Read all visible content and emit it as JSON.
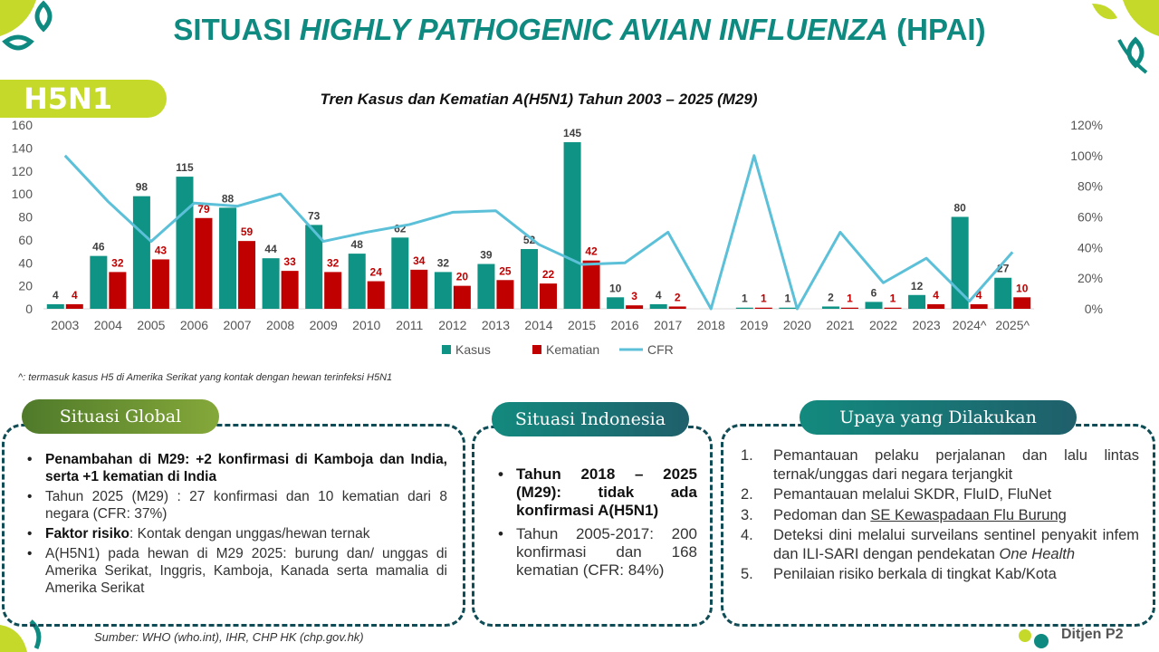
{
  "title_part1": "SITUASI ",
  "title_italic": "HIGHLY PATHOGENIC AVIAN INFLUENZA",
  "title_part2": " (HPAI)",
  "tag": "H5N1",
  "colors": {
    "kasus": "#0e9384",
    "kematian": "#c00000",
    "cfr": "#5bc0d8",
    "teal": "#0e8a80",
    "lime": "#c5d92a"
  },
  "chart_data": {
    "type": "bar",
    "title": "Tren Kasus dan Kematian A(H5N1) Tahun 2003 – 2025 (M29)",
    "categories": [
      "2003",
      "2004",
      "2005",
      "2006",
      "2007",
      "2008",
      "2009",
      "2010",
      "2011",
      "2012",
      "2013",
      "2014",
      "2015",
      "2016",
      "2017",
      "2018",
      "2019",
      "2020",
      "2021",
      "2022",
      "2023",
      "2024^",
      "2025^"
    ],
    "series": [
      {
        "name": "Kasus",
        "type": "bar",
        "axis": "left",
        "values": [
          4,
          46,
          98,
          115,
          88,
          44,
          73,
          48,
          62,
          32,
          39,
          52,
          145,
          10,
          4,
          0,
          1,
          1,
          2,
          6,
          12,
          80,
          27
        ],
        "labels": [
          "4",
          "46",
          "98",
          "115",
          "88",
          "44",
          "73",
          "48",
          "62",
          "32",
          "39",
          "52",
          "145",
          "10",
          "4",
          "",
          "1",
          "1",
          "2",
          "6",
          "12",
          "80",
          "27"
        ]
      },
      {
        "name": "Kematian",
        "type": "bar",
        "axis": "left",
        "values": [
          4,
          32,
          43,
          79,
          59,
          33,
          32,
          24,
          34,
          20,
          25,
          22,
          42,
          3,
          2,
          0,
          1,
          0,
          1,
          1,
          4,
          4,
          10
        ],
        "labels": [
          "4",
          "32",
          "43",
          "79",
          "59",
          "33",
          "32",
          "24",
          "34",
          "20",
          "25",
          "22",
          "42",
          "3",
          "2",
          "",
          "1",
          "",
          "1",
          "1",
          "4",
          "4",
          "10"
        ]
      },
      {
        "name": "CFR",
        "type": "line",
        "axis": "right",
        "values": [
          100,
          70,
          44,
          69,
          67,
          75,
          44,
          50,
          55,
          63,
          64,
          42,
          29,
          30,
          50,
          0,
          100,
          0,
          50,
          17,
          33,
          5,
          37
        ]
      }
    ],
    "ylim_left": [
      0,
      160
    ],
    "yticks_left": [
      "0",
      "20",
      "40",
      "60",
      "80",
      "100",
      "120",
      "140",
      "160"
    ],
    "ylim_right": [
      0,
      120
    ],
    "yticks_right": [
      "0%",
      "20%",
      "40%",
      "60%",
      "80%",
      "100%",
      "120%"
    ],
    "legend_position": "bottom"
  },
  "footnote": "^: termasuk kasus H5 di Amerika Serikat yang kontak dengan hewan terinfeksi H5N1",
  "global": {
    "heading": "Situasi Global",
    "b1": "Penambahan di M29: +2 konfirmasi di Kamboja dan India, serta +1 kematian di  India",
    "b2": "Tahun 2025 (M29) : 27 konfirmasi dan 10 kematian dari 8 negara (CFR: 37%)",
    "b3_bold": "Faktor risiko",
    "b3_rest": ": Kontak dengan unggas/hewan ternak",
    "b4": "A(H5N1) pada hewan di M29 2025: burung dan/ unggas di Amerika Serikat, Inggris, Kamboja,  Kanada serta mamalia di Amerika Serikat"
  },
  "indonesia": {
    "heading": "Situasi Indonesia",
    "b1": "Tahun 2018 – 2025 (M29): tidak ada konfirmasi A(H5N1)",
    "b2": "Tahun 2005-2017: 200 konfirmasi dan 168 kematian (CFR: 84%)"
  },
  "upaya": {
    "heading": "Upaya yang Dilakukan",
    "n1": "1.",
    "i1": "Pemantauan pelaku perjalanan dan lalu lintas ternak/unggas dari negara terjangkit",
    "n2": "2.",
    "i2": "Pemantauan melalui SKDR, FluID, FluNet",
    "n3": "3.",
    "i3a": "Pedoman dan ",
    "i3b": "SE Kewaspadaan Flu Burung",
    "n4": "4.",
    "i4a": "Deteksi dini melalui surveilans sentinel penyakit infem dan ILI-SARI dengan pendekatan ",
    "i4b": "One Health",
    "n5": "5.",
    "i5": "Penilaian risiko berkala di tingkat Kab/Kota"
  },
  "source": "Sumber: WHO (who.int), IHR, CHP HK (chp.gov.hk)",
  "brand": "Ditjen P2"
}
